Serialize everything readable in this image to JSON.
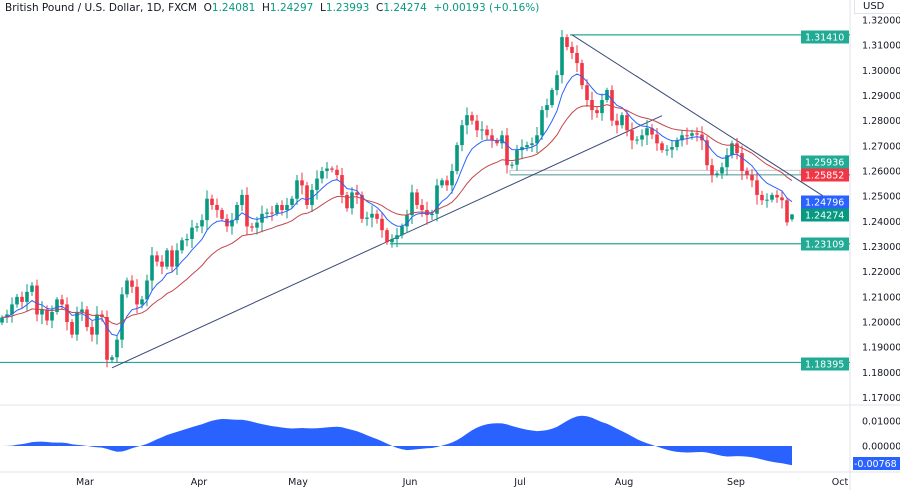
{
  "header": {
    "symbol": "British Pound / U.S. Dollar, 1D, FXCM",
    "o_label": "O",
    "o": "1.24081",
    "h_label": "H",
    "h": "1.24297",
    "l_label": "L",
    "l": "1.23993",
    "c_label": "C",
    "c": "1.24274",
    "change": "+0.00193 (+0.16%)"
  },
  "currency": "USD",
  "colors": {
    "up": "#089981",
    "down": "#f23645",
    "fast_ma": "#2962ff",
    "slow_ma": "#c2464c",
    "level": "#22ab94",
    "trendline": "#3a4a7a",
    "oscillator": "#2962ff"
  },
  "chart_data": {
    "type": "candlestick",
    "ylim": [
      1.165,
      1.325
    ],
    "y_ticks": [
      "1.32000",
      "1.31000",
      "1.30000",
      "1.29000",
      "1.28000",
      "1.27000",
      "1.26000",
      "1.25000",
      "1.24000",
      "1.23000",
      "1.22000",
      "1.21000",
      "1.20000",
      "1.19000",
      "1.18000",
      "1.17000"
    ],
    "x_ticks": [
      "Mar",
      "Apr",
      "May",
      "Jun",
      "Jul",
      "Aug",
      "Sep",
      "Oct"
    ],
    "last_bar": {
      "open": 1.24081,
      "high": 1.24297,
      "low": 1.23993,
      "close": 1.24274
    },
    "closes": [
      1.2018,
      1.203,
      1.207,
      1.21,
      1.208,
      1.212,
      1.2145,
      1.203,
      1.205,
      1.2006,
      1.204,
      1.209,
      1.207,
      1.2,
      1.195,
      1.204,
      1.205,
      1.198,
      1.195,
      1.203,
      1.202,
      1.185,
      1.186,
      1.193,
      1.211,
      1.2165,
      1.214,
      1.207,
      1.209,
      1.2165,
      1.2265,
      1.224,
      1.222,
      1.2285,
      1.222,
      1.2285,
      1.2325,
      1.233,
      1.2375,
      1.238,
      1.2405,
      1.249,
      1.2465,
      1.2445,
      1.241,
      1.238,
      1.2405,
      1.2465,
      1.2505,
      1.238,
      1.2375,
      1.2395,
      1.243,
      1.2435,
      1.2432,
      1.2465,
      1.2445,
      1.2465,
      1.249,
      1.2563,
      1.2543,
      1.2465,
      1.2525,
      1.257,
      1.26,
      1.261,
      1.2605,
      1.2584,
      1.2505,
      1.2452,
      1.2515,
      1.2505,
      1.241,
      1.2415,
      1.243,
      1.241,
      1.2365,
      1.2317,
      1.233,
      1.2345,
      1.238,
      1.2425,
      1.2515,
      1.2465,
      1.2445,
      1.2425,
      1.243,
      1.2543,
      1.2563,
      1.2543,
      1.26,
      1.2703,
      1.2782,
      1.2822,
      1.28,
      1.2762,
      1.2765,
      1.2742,
      1.2722,
      1.271,
      1.2742,
      1.2623,
      1.2625,
      1.2683,
      1.2695,
      1.2703,
      1.271,
      1.2742,
      1.2842,
      1.2862,
      1.2922,
      1.2981,
      1.3132,
      1.3093,
      1.3069,
      1.3029,
      1.2941,
      1.2882,
      1.2842,
      1.283,
      1.2882,
      1.2922,
      1.28,
      1.2782,
      1.2822,
      1.2762,
      1.2722,
      1.2725,
      1.2742,
      1.277,
      1.2745,
      1.271,
      1.2683,
      1.2685,
      1.2695,
      1.2722,
      1.2742,
      1.274,
      1.275,
      1.2745,
      1.2722,
      1.2623,
      1.2584,
      1.259,
      1.2615,
      1.2663,
      1.271,
      1.2671,
      1.26,
      1.2584,
      1.2563,
      1.2505,
      1.2484,
      1.2486,
      1.2505,
      1.2495,
      1.2484,
      1.2396,
      1.24274
    ],
    "levels": [
      {
        "price": 1.3141,
        "label": "1.31410",
        "color": "#22ab94"
      },
      {
        "price": 1.25936,
        "label": "1.25936",
        "color": "#22ab94"
      },
      {
        "price": 1.25852,
        "label": "1.25852",
        "color": "#f23645"
      },
      {
        "price": 1.24796,
        "label": "1.24796",
        "color": "#2962ff"
      },
      {
        "price": 1.24274,
        "label": "1.24274",
        "color": "#089981"
      },
      {
        "price": 1.23109,
        "label": "1.23109",
        "color": "#22ab94"
      },
      {
        "price": 1.18395,
        "label": "1.18395",
        "color": "#22ab94"
      }
    ],
    "trendlines": [
      {
        "from": {
          "bar": 22,
          "price": 1.1818
        },
        "to": {
          "bar": 132,
          "price": 1.282
        }
      },
      {
        "from": {
          "bar": 114,
          "price": 1.3141
        },
        "to": {
          "bar": 169,
          "price": 1.244
        }
      }
    ],
    "oscillator": {
      "y_ticks": [
        "0.01000",
        "0.00000"
      ],
      "last_label": "-0.00768",
      "last": -0.00768
    }
  }
}
